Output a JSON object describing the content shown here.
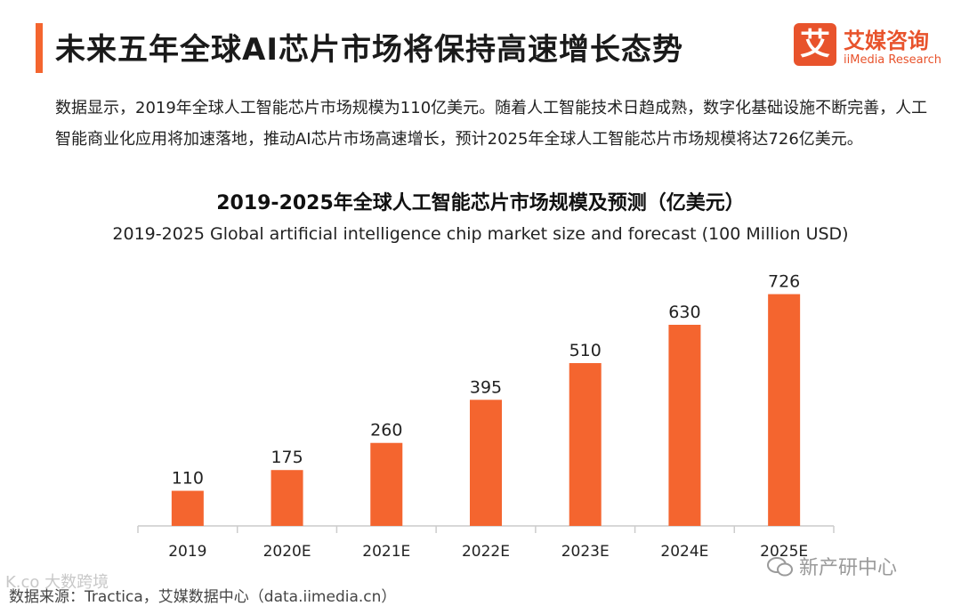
{
  "header": {
    "title": "未来五年全球AI芯片市场将保持高速增长态势"
  },
  "logo": {
    "glyph": "艾",
    "name_cn": "艾媒咨询",
    "name_en": "iiMedia Research"
  },
  "summary": {
    "text": "数据显示，2019年全球人工智能芯片市场规模为110亿美元。随着人工智能技术日趋成熟，数字化基础设施不断完善，人工智能商业化应用将加速落地，推动AI芯片市场高速增长，预计2025年全球人工智能芯片市场规模将达726亿美元。"
  },
  "chart_data": {
    "type": "bar",
    "title": "2019-2025年全球人工智能芯片市场规模及预测（亿美元）",
    "subtitle": "2019-2025 Global artificial intelligence chip market size and forecast (100 Million USD)",
    "categories": [
      "2019",
      "2020E",
      "2021E",
      "2022E",
      "2023E",
      "2024E",
      "2025E"
    ],
    "values": [
      110,
      175,
      260,
      395,
      510,
      630,
      726
    ],
    "data_labels": [
      "110",
      "175",
      "260",
      "395",
      "510",
      "630",
      "726"
    ],
    "xlabel": "",
    "ylabel": "",
    "ylim": [
      0,
      800
    ],
    "grid": false,
    "legend": "none",
    "bar_color": "#f4652f",
    "axis_color": "#cccccc"
  },
  "footer": {
    "source": "数据来源：Tractica，艾媒数据中心（data.iimedia.cn）"
  },
  "watermarks": {
    "left": "K.co 大数跨境",
    "right": "新产研中心"
  },
  "colors": {
    "accent": "#f4652f",
    "logo": "#e8532c",
    "text": "#222222"
  }
}
